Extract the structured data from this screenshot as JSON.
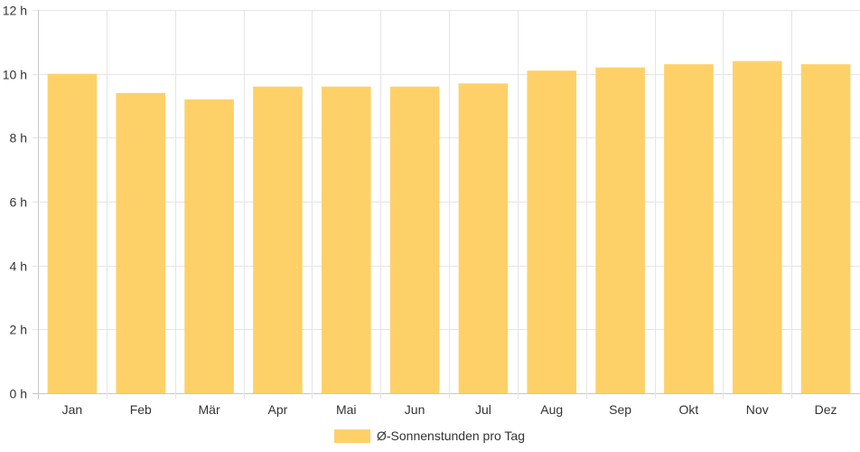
{
  "chart_data": {
    "type": "bar",
    "categories": [
      "Jan",
      "Feb",
      "Mär",
      "Apr",
      "Mai",
      "Jun",
      "Jul",
      "Aug",
      "Sep",
      "Okt",
      "Nov",
      "Dez"
    ],
    "series": [
      {
        "name": "Ø-Sonnenstunden pro Tag",
        "values": [
          10.0,
          9.4,
          9.2,
          9.6,
          9.6,
          9.6,
          9.7,
          10.1,
          10.2,
          10.3,
          10.4,
          10.3
        ],
        "color": "#fed168"
      }
    ],
    "ylim": [
      0,
      12
    ],
    "ytick_values": [
      0,
      2,
      4,
      6,
      8,
      10,
      12
    ],
    "ytick_labels": [
      "0 h",
      "2 h",
      "4 h",
      "6 h",
      "8 h",
      "10 h",
      "12 h"
    ],
    "grid": true,
    "legend_position": "bottom"
  }
}
